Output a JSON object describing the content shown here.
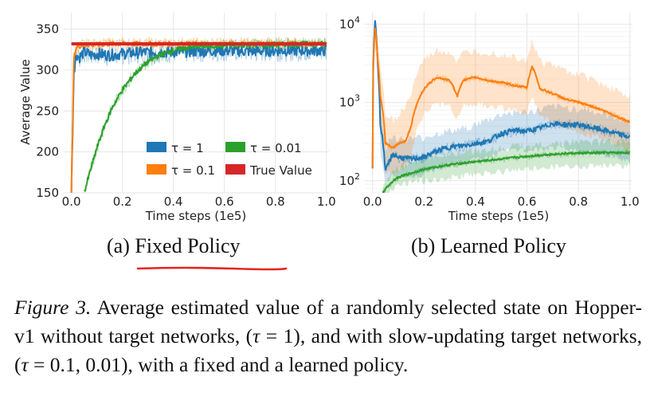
{
  "chart_data": [
    {
      "type": "line",
      "title": "Fixed Policy",
      "subcaption_prefix": "(a)",
      "xlabel": "Time steps (1e5)",
      "ylabel": "Average Value",
      "xlim": [
        -0.03,
        1.01
      ],
      "ylim": [
        150,
        370
      ],
      "xticks": [
        0.0,
        0.2,
        0.4,
        0.6,
        0.8,
        1.0
      ],
      "xtick_labels": [
        "0.0",
        "0.2",
        "0.4",
        "0.6",
        "0.8",
        "1.0"
      ],
      "yticks": [
        150,
        200,
        250,
        300,
        350
      ],
      "ytick_labels": [
        "150",
        "200",
        "250",
        "300",
        "350"
      ],
      "grid": true,
      "legend_position": "lower-right",
      "series": [
        {
          "name": "τ = 1",
          "color": "#1f77b4",
          "x": [
            0.0,
            0.01,
            0.02,
            0.03,
            0.05,
            0.08,
            0.1,
            0.15,
            0.2,
            0.3,
            0.4,
            0.5,
            0.6,
            0.7,
            0.8,
            0.9,
            1.0
          ],
          "y": [
            150,
            300,
            320,
            315,
            322,
            318,
            320,
            318,
            320,
            322,
            322,
            323,
            324,
            323,
            324,
            324,
            324
          ]
        },
        {
          "name": "τ = 0.1",
          "color": "#ff7f0e",
          "x": [
            0.0,
            0.01,
            0.02,
            0.04,
            0.06,
            0.1,
            0.15,
            0.2,
            0.3,
            0.4,
            0.5,
            0.6,
            0.7,
            0.8,
            0.9,
            1.0
          ],
          "y": [
            150,
            315,
            328,
            330,
            331,
            331,
            332,
            332,
            332,
            332,
            332,
            332,
            332,
            332,
            332,
            332
          ]
        },
        {
          "name": "τ = 0.01",
          "color": "#2ca02c",
          "x": [
            0.05,
            0.07,
            0.1,
            0.13,
            0.16,
            0.2,
            0.25,
            0.3,
            0.35,
            0.4,
            0.45,
            0.5,
            0.6,
            0.7,
            0.8,
            0.9,
            1.0
          ],
          "y": [
            150,
            172,
            205,
            232,
            254,
            276,
            296,
            310,
            319,
            324,
            327,
            329,
            330,
            331,
            331,
            332,
            332
          ]
        },
        {
          "name": "True Value",
          "color": "#d62728",
          "x": [
            0.0,
            1.0
          ],
          "y": [
            332,
            332
          ]
        }
      ]
    },
    {
      "type": "line",
      "title": "Learned Policy",
      "subcaption_prefix": "(b)",
      "xlabel": "Time steps (1e5)",
      "ylabel": "",
      "yscale": "log",
      "xlim": [
        -0.03,
        1.01
      ],
      "ylim": [
        70,
        14000
      ],
      "xticks": [
        0.0,
        0.2,
        0.4,
        0.6,
        0.8,
        1.0
      ],
      "xtick_labels": [
        "0.0",
        "0.2",
        "0.4",
        "0.6",
        "0.8",
        "1.0"
      ],
      "yticks": [
        100,
        1000,
        10000
      ],
      "ytick_labels": [
        "10",
        "10",
        "10"
      ],
      "ytick_exponents": [
        "2",
        "3",
        "4"
      ],
      "grid": true,
      "series": [
        {
          "name": "τ = 1",
          "color": "#1f77b4",
          "x": [
            0.0,
            0.01,
            0.02,
            0.03,
            0.05,
            0.08,
            0.1,
            0.15,
            0.2,
            0.25,
            0.3,
            0.35,
            0.4,
            0.45,
            0.5,
            0.55,
            0.6,
            0.65,
            0.7,
            0.75,
            0.8,
            0.85,
            0.9,
            0.95,
            1.0
          ],
          "y": [
            150,
            11000,
            3000,
            500,
            130,
            220,
            200,
            190,
            200,
            240,
            270,
            280,
            300,
            320,
            400,
            440,
            430,
            470,
            540,
            520,
            520,
            480,
            440,
            400,
            360
          ],
          "band_lower": [
            120,
            8000,
            1800,
            250,
            90,
            120,
            110,
            110,
            120,
            140,
            170,
            180,
            190,
            200,
            230,
            250,
            240,
            250,
            260,
            250,
            240,
            230,
            210,
            190,
            180
          ],
          "band_upper": [
            200,
            13000,
            5000,
            900,
            250,
            380,
            340,
            340,
            360,
            400,
            430,
            460,
            520,
            600,
            700,
            760,
            740,
            800,
            880,
            860,
            840,
            780,
            700,
            640,
            560
          ]
        },
        {
          "name": "τ = 0.1",
          "color": "#ff7f0e",
          "x": [
            0.0,
            0.01,
            0.02,
            0.03,
            0.05,
            0.08,
            0.1,
            0.13,
            0.15,
            0.2,
            0.25,
            0.3,
            0.33,
            0.35,
            0.4,
            0.45,
            0.5,
            0.55,
            0.6,
            0.62,
            0.65,
            0.7,
            0.75,
            0.8,
            0.85,
            0.9,
            0.95,
            1.0
          ],
          "y": [
            150,
            9000,
            3500,
            1200,
            300,
            260,
            300,
            320,
            500,
            1500,
            2100,
            1900,
            1200,
            1900,
            2100,
            1900,
            1800,
            1650,
            1550,
            2900,
            1500,
            1300,
            1100,
            1000,
            900,
            780,
            660,
            560
          ],
          "band_lower": [
            110,
            6000,
            1800,
            500,
            130,
            120,
            140,
            150,
            200,
            700,
            1000,
            900,
            600,
            900,
            1000,
            900,
            850,
            780,
            700,
            1200,
            650,
            560,
            480,
            420,
            380,
            330,
            280,
            240
          ],
          "band_upper": [
            220,
            13000,
            6000,
            2500,
            700,
            600,
            700,
            900,
            1300,
            3500,
            4600,
            4400,
            3200,
            4200,
            4600,
            4400,
            4200,
            3900,
            3600,
            6000,
            3400,
            3000,
            2600,
            2300,
            2000,
            1700,
            1400,
            1200
          ]
        },
        {
          "name": "τ = 0.01",
          "color": "#2ca02c",
          "x": [
            0.04,
            0.06,
            0.08,
            0.1,
            0.15,
            0.2,
            0.25,
            0.3,
            0.35,
            0.4,
            0.45,
            0.5,
            0.55,
            0.6,
            0.65,
            0.7,
            0.75,
            0.8,
            0.85,
            0.9,
            0.95,
            1.0
          ],
          "y": [
            70,
            85,
            100,
            110,
            125,
            140,
            150,
            160,
            168,
            175,
            182,
            190,
            197,
            205,
            212,
            218,
            223,
            225,
            226,
            228,
            228,
            228
          ],
          "band_lower": [
            60,
            70,
            80,
            88,
            95,
            100,
            105,
            110,
            115,
            120,
            125,
            130,
            135,
            140,
            145,
            150,
            152,
            154,
            155,
            156,
            156,
            156
          ],
          "band_upper": [
            85,
            110,
            130,
            145,
            170,
            195,
            210,
            225,
            235,
            245,
            255,
            262,
            270,
            280,
            290,
            300,
            305,
            310,
            312,
            315,
            315,
            315
          ]
        }
      ]
    }
  ],
  "legend": {
    "tau1": "τ = 1",
    "tau001": "τ = 0.01",
    "tau01": "τ = 0.1",
    "true_value": "True Value"
  },
  "subcaptions": {
    "a_prefix": "(a)",
    "a_title": "Fixed Policy",
    "b_prefix": "(b)",
    "b_title": "Learned Policy"
  },
  "caption": {
    "label": "Figure 3.",
    "text1": " Average estimated value of a randomly selected state on Hopper-v1 without target networks, (",
    "tau_sym": "τ",
    "eq1": " = 1",
    "text2": "), and with slow-updating target networks, (",
    "eq2": " = 0.1, 0.01",
    "text3": "), with a fixed and a learned policy."
  },
  "colors": {
    "tau1": "#1f77b4",
    "tau01": "#ff7f0e",
    "tau001": "#2ca02c",
    "true": "#d62728",
    "grid": "#e6e6e6",
    "annotation_underline": "#e8231f"
  }
}
